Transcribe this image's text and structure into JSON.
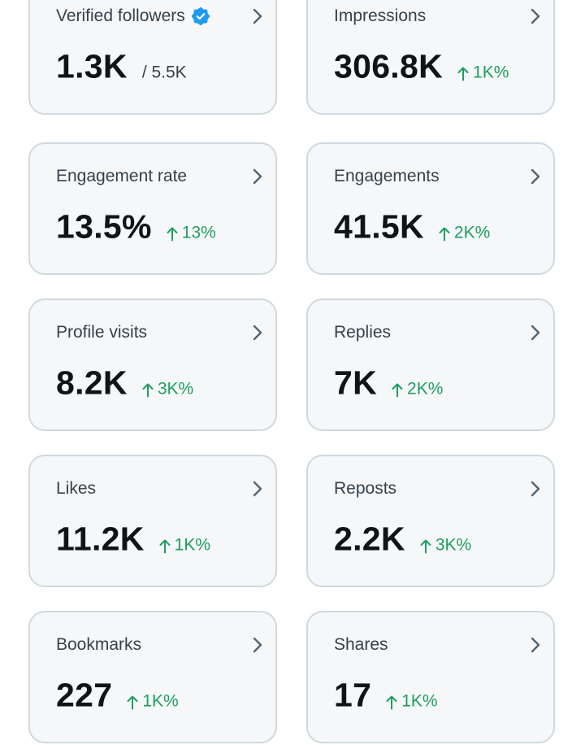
{
  "cards": [
    {
      "id": "verified-followers",
      "title": "Verified followers",
      "value": "1.3K",
      "total": "/ 5.5K",
      "change": "",
      "verified": true
    },
    {
      "id": "impressions",
      "title": "Impressions",
      "value": "306.8K",
      "change": "1K%"
    },
    {
      "id": "engagement-rate",
      "title": "Engagement rate",
      "value": "13.5%",
      "change": "13%"
    },
    {
      "id": "engagements",
      "title": "Engagements",
      "value": "41.5K",
      "change": "2K%"
    },
    {
      "id": "profile-visits",
      "title": "Profile visits",
      "value": "8.2K",
      "change": "3K%"
    },
    {
      "id": "replies",
      "title": "Replies",
      "value": "7K",
      "change": "2K%"
    },
    {
      "id": "likes",
      "title": "Likes",
      "value": "11.2K",
      "change": "1K%"
    },
    {
      "id": "reposts",
      "title": "Reposts",
      "value": "2.2K",
      "change": "3K%"
    },
    {
      "id": "bookmarks",
      "title": "Bookmarks",
      "value": "227",
      "change": "1K%"
    },
    {
      "id": "shares",
      "title": "Shares",
      "value": "17",
      "change": "1K%"
    }
  ],
  "icons": {
    "chevron": "chevron-right-icon",
    "trend": "arrow-up-icon",
    "verified": "verified-badge-icon"
  },
  "colors": {
    "card_background": "#f5f7f8",
    "card_border": "#cfd9de",
    "positive_change": "#1f9e61",
    "verified_blue": "#1d9bf0",
    "chevron": "#536471"
  }
}
